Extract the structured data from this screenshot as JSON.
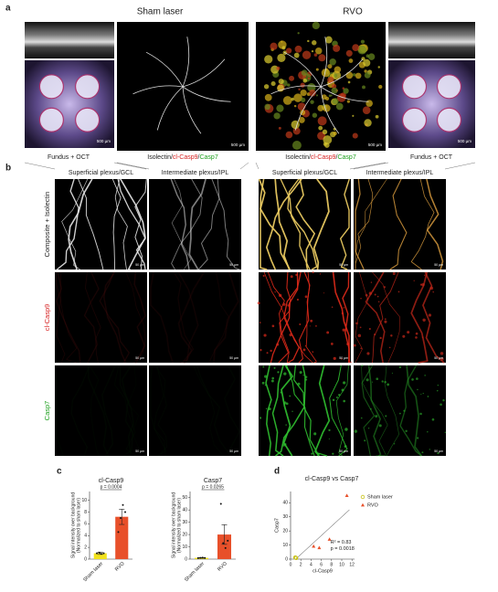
{
  "panel_a": {
    "label": "a",
    "groups": [
      "Sham laser",
      "RVO"
    ],
    "captions": [
      "Fundus + OCT",
      {
        "parts": [
          "Isolectin/",
          "cl-Casp9",
          "/",
          "Casp7"
        ]
      },
      {
        "parts": [
          "Isolectin/",
          "cl-Casp9",
          "/",
          "Casp7"
        ]
      },
      "Fundus + OCT"
    ],
    "scale_labels": [
      "500 µm",
      "500 µm",
      "500 µm",
      "500 µm"
    ]
  },
  "panel_b": {
    "label": "b",
    "columns": [
      "Superficial plexus/GCL",
      "Intermediate plexus/IPL",
      "Superficial plexus/GCL",
      "Intermediate plexus/IPL"
    ],
    "rows": [
      "Composite + Isolectin",
      "cl-Casp9",
      "Casp7"
    ],
    "scale_labels": [
      "50 µm",
      "50 µm",
      "50 µm",
      "50 µm",
      "50 µm",
      "50 µm",
      "50 µm",
      "50 µm",
      "50 µm",
      "50 µm",
      "50 µm",
      "50 µm"
    ]
  },
  "panel_labels": [
    "c",
    "d"
  ],
  "chart_data": [
    {
      "type": "bar",
      "title": "cl-Casp9",
      "ylabel": [
        "Signal intensity over background",
        "(Normalized to sham laser)"
      ],
      "categories": [
        "Sham laser",
        "RVO"
      ],
      "values": [
        1,
        7.2
      ],
      "errors": [
        0.2,
        1.3
      ],
      "colors": [
        "#f2e21c",
        "#e8502a"
      ],
      "points": [
        [
          1.0,
          1.1,
          0.9,
          1.0
        ],
        [
          4.6,
          7.0,
          9.2,
          8.0
        ]
      ],
      "ylim": [
        0,
        11.5
      ],
      "yticks": [
        0,
        2,
        4,
        6,
        8,
        10
      ],
      "annotation": "p = 0.0004"
    },
    {
      "type": "bar",
      "title": "Casp7",
      "ylabel": [
        "Signal intensity over background",
        "(Normalized to sham laser)"
      ],
      "categories": [
        "Sham laser",
        "RVO"
      ],
      "values": [
        1,
        20
      ],
      "errors": [
        0.3,
        8
      ],
      "colors": [
        "#f2e21c",
        "#e8502a"
      ],
      "points": [
        [
          0.8,
          1.0,
          1.2,
          0.9
        ],
        [
          45,
          13,
          9,
          15
        ]
      ],
      "ylim": [
        0,
        55
      ],
      "yticks": [
        0,
        10,
        20,
        30,
        40,
        50
      ],
      "annotation": "p = 0.0265"
    },
    {
      "type": "scatter",
      "title": "cl-Casp9 vs Casp7",
      "xlabel": "cl-Casp9",
      "ylabel": "Casp7",
      "series": [
        {
          "name": "Sham laser",
          "color": "#c9c21a",
          "marker": "circle",
          "x": [
            1.0,
            1.1,
            0.9,
            1.0
          ],
          "values": [
            1.0,
            0.8,
            1.2,
            1.0
          ]
        },
        {
          "name": "RVO",
          "color": "#e8502a",
          "marker": "triangle",
          "x": [
            4.5,
            5.6,
            7.6,
            11
          ],
          "values": [
            9,
            8,
            14,
            45
          ]
        }
      ],
      "fit": {
        "x": [
          1,
          11.5
        ],
        "y": [
          0,
          35
        ]
      },
      "xlim": [
        0,
        12.5
      ],
      "xticks": [
        0,
        2,
        4,
        6,
        8,
        10,
        12
      ],
      "ylim": [
        0,
        48
      ],
      "yticks": [
        0,
        10,
        20,
        30,
        40
      ],
      "annotations": [
        "R² = 0.83",
        "p = 0.0018"
      ]
    }
  ]
}
